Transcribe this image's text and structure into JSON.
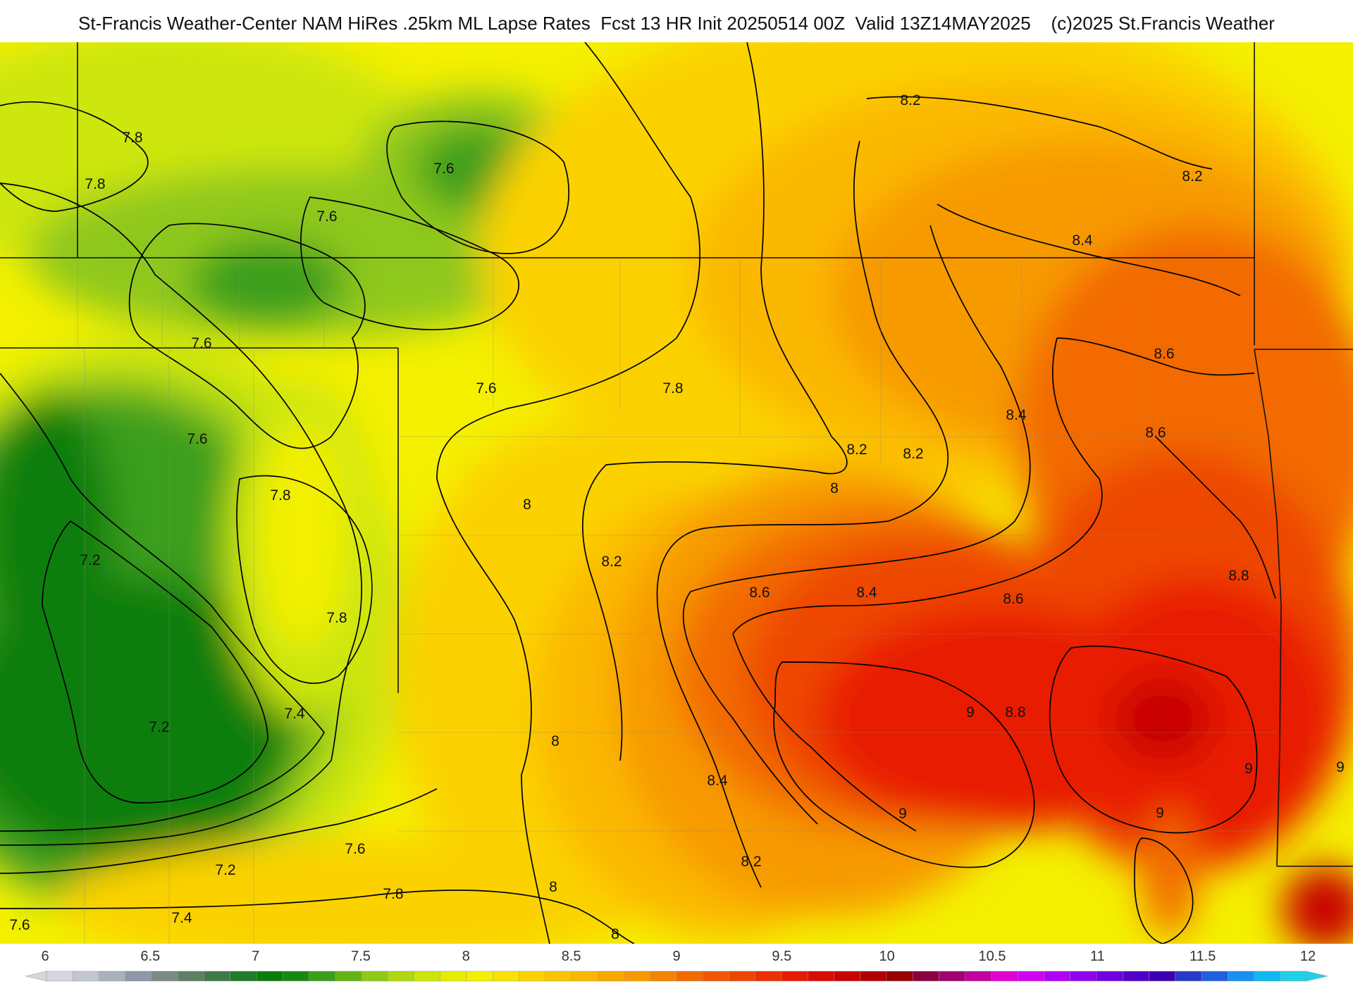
{
  "header": {
    "title": "St-Francis Weather-Center NAM HiRes .25km ML Lapse Rates  Fcst 13 HR Init 20250514 00Z  Valid 13Z14MAY2025    (c)2025 St.Francis Weather"
  },
  "map": {
    "product": "ML Lapse Rates",
    "fill_colors": {
      "green_dark": "#0a7e0a",
      "green": "#3a9e1a",
      "green_light": "#8fc81a",
      "yellow_green": "#cde60a",
      "yellow": "#f4f000",
      "gold": "#fbd200",
      "orange_light": "#fbb800",
      "orange": "#f79a00",
      "orange_red": "#f26a00",
      "red_orange": "#ee4600",
      "red": "#e81a00",
      "red_dark": "#c80000"
    },
    "contour_labels": [
      "7.8",
      "7.8",
      "7.6",
      "7.6",
      "7.6",
      "7.6",
      "7.6",
      "7.8",
      "7.2",
      "7.8",
      "7.8",
      "7.4",
      "7.2",
      "7.2",
      "7.6",
      "7.4",
      "7.6",
      "7.8",
      "8",
      "7.8",
      "8",
      "8",
      "8.2",
      "8.2",
      "8",
      "8.2",
      "8.4",
      "8.6",
      "8.4",
      "8.2",
      "8.2",
      "8.2",
      "8.4",
      "8.6",
      "8.4",
      "8.6",
      "8.6",
      "8.8",
      "9",
      "8.8",
      "9",
      "9",
      "9",
      "9",
      "8"
    ]
  },
  "legend": {
    "ticks": [
      "6",
      "6.5",
      "7",
      "7.5",
      "8",
      "8.5",
      "9",
      "9.5",
      "10",
      "10.5",
      "11",
      "11.5",
      "12"
    ],
    "colors": [
      "#d6d6de",
      "#c2c6d0",
      "#aab0bc",
      "#8e98a6",
      "#7a8a84",
      "#5f7f66",
      "#3f7a48",
      "#237a2c",
      "#0a7e0a",
      "#1a8810",
      "#3a9e1a",
      "#64b414",
      "#8fc81a",
      "#b0d810",
      "#cde60a",
      "#e6ee00",
      "#f4f000",
      "#fae200",
      "#fbd200",
      "#fbc400",
      "#fbb800",
      "#f9a800",
      "#f79a00",
      "#f58400",
      "#f26a00",
      "#ee5800",
      "#ee4600",
      "#ea3000",
      "#e81a00",
      "#d80c00",
      "#c80000",
      "#b00000",
      "#980000",
      "#8a0040",
      "#a00070",
      "#c000a0",
      "#e000d0",
      "#d000f0",
      "#b000f8",
      "#9000f0",
      "#7000e0",
      "#5000c8",
      "#3a00b0",
      "#2838c8",
      "#2060e0",
      "#1890f0",
      "#10b8f0",
      "#20d0e8"
    ]
  }
}
